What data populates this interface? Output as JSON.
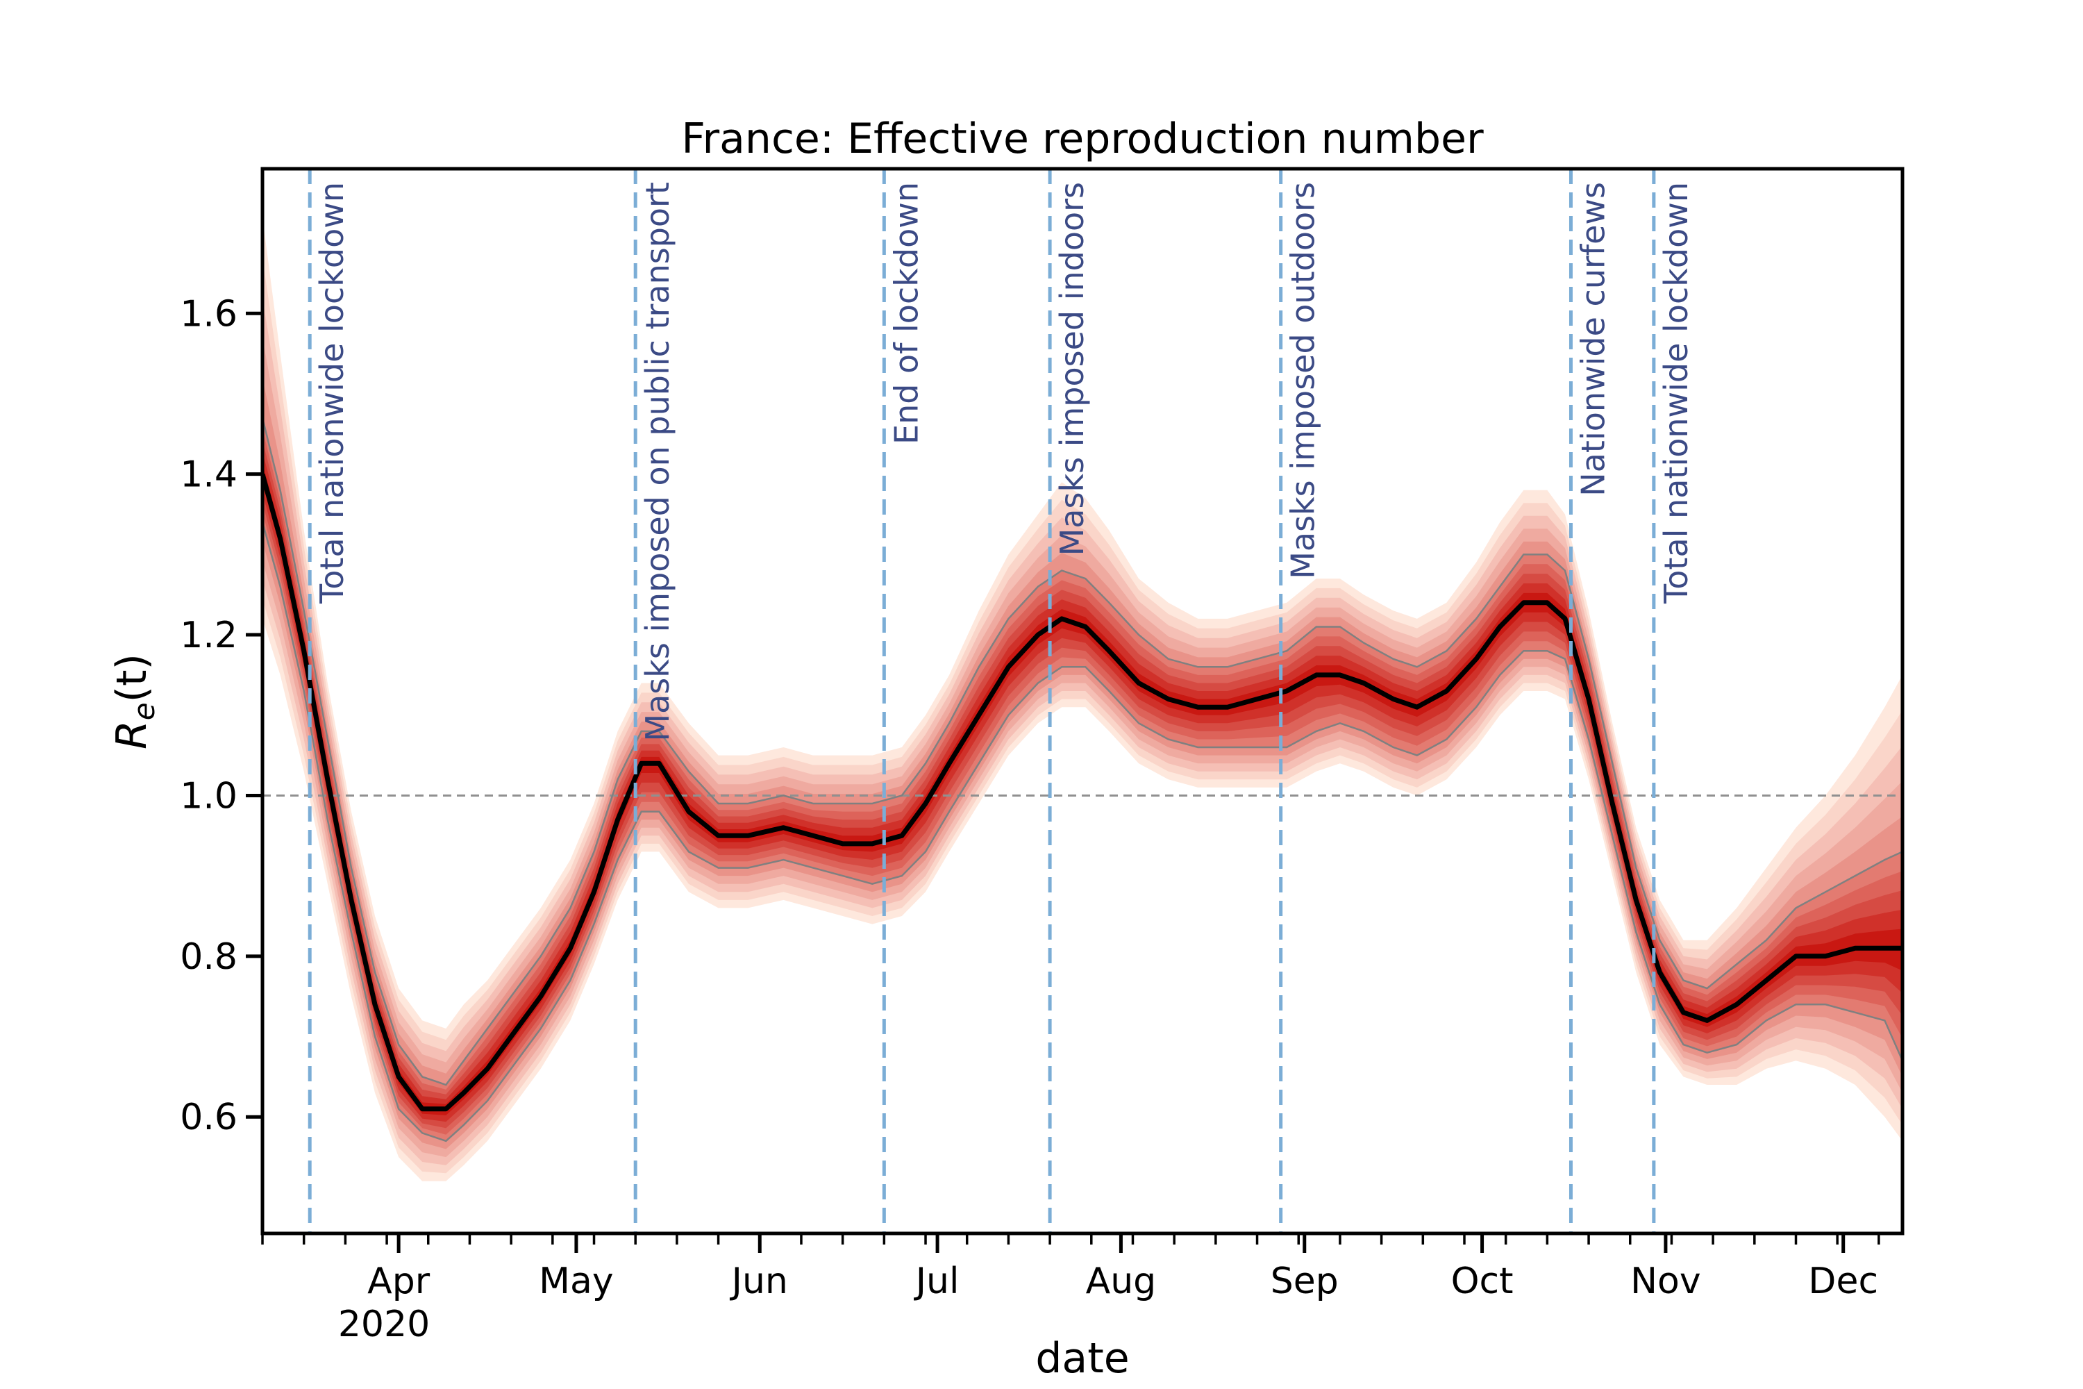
{
  "chart_data": {
    "type": "line",
    "title": "France: Effective reproduction number",
    "xlabel": "date",
    "ylabel": "R_e(t)",
    "ylabel_main": "R",
    "ylabel_sub": "e",
    "ylabel_rest": "(t)",
    "year_label": "2020",
    "xlim": [
      "2020-03-09",
      "2020-12-11"
    ],
    "ylim": [
      0.455,
      1.78
    ],
    "y_ticks": [
      0.6,
      0.8,
      1.0,
      1.2,
      1.4,
      1.6
    ],
    "y_tick_labels": [
      "0.6",
      "0.8",
      "1.0",
      "1.2",
      "1.4",
      "1.6"
    ],
    "month_ticks": [
      {
        "date": "2020-04-01",
        "label": "Apr"
      },
      {
        "date": "2020-05-01",
        "label": "May"
      },
      {
        "date": "2020-06-01",
        "label": "Jun"
      },
      {
        "date": "2020-07-01",
        "label": "Jul"
      },
      {
        "date": "2020-08-01",
        "label": "Aug"
      },
      {
        "date": "2020-09-01",
        "label": "Sep"
      },
      {
        "date": "2020-10-01",
        "label": "Oct"
      },
      {
        "date": "2020-11-01",
        "label": "Nov"
      },
      {
        "date": "2020-12-01",
        "label": "Dec"
      }
    ],
    "reference_line": 1.0,
    "colors": {
      "median": "#000000",
      "band_inner": "#c8160f",
      "band_outer": "#fee5d9",
      "interval_line": "#808080",
      "event_line": "#7badd6",
      "event_text": "#3b4a85",
      "reference": "#909090"
    },
    "series": [
      {
        "x": [
          "2020-03-09",
          "2020-03-12",
          "2020-03-16",
          "2020-03-20",
          "2020-03-24",
          "2020-03-28",
          "2020-04-01",
          "2020-04-05",
          "2020-04-09",
          "2020-04-12",
          "2020-04-16",
          "2020-04-20",
          "2020-04-25",
          "2020-04-30",
          "2020-05-04",
          "2020-05-08",
          "2020-05-12",
          "2020-05-15",
          "2020-05-20",
          "2020-05-25",
          "2020-05-30",
          "2020-06-05",
          "2020-06-10",
          "2020-06-15",
          "2020-06-20",
          "2020-06-25",
          "2020-06-29",
          "2020-07-03",
          "2020-07-08",
          "2020-07-13",
          "2020-07-18",
          "2020-07-22",
          "2020-07-26",
          "2020-07-30",
          "2020-08-04",
          "2020-08-09",
          "2020-08-14",
          "2020-08-19",
          "2020-08-24",
          "2020-08-29",
          "2020-09-03",
          "2020-09-07",
          "2020-09-11",
          "2020-09-16",
          "2020-09-20",
          "2020-09-25",
          "2020-09-30",
          "2020-10-04",
          "2020-10-08",
          "2020-10-12",
          "2020-10-15",
          "2020-10-19",
          "2020-10-23",
          "2020-10-27",
          "2020-10-31",
          "2020-11-04",
          "2020-11-08",
          "2020-11-13",
          "2020-11-18",
          "2020-11-23",
          "2020-11-28",
          "2020-12-03",
          "2020-12-08",
          "2020-12-11"
        ],
        "median": [
          1.4,
          1.32,
          1.18,
          1.02,
          0.87,
          0.74,
          0.65,
          0.61,
          0.61,
          0.63,
          0.66,
          0.7,
          0.75,
          0.81,
          0.88,
          0.97,
          1.04,
          1.04,
          0.98,
          0.95,
          0.95,
          0.96,
          0.95,
          0.94,
          0.94,
          0.95,
          0.99,
          1.04,
          1.1,
          1.16,
          1.2,
          1.22,
          1.21,
          1.18,
          1.14,
          1.12,
          1.11,
          1.11,
          1.12,
          1.13,
          1.15,
          1.15,
          1.14,
          1.12,
          1.11,
          1.13,
          1.17,
          1.21,
          1.24,
          1.24,
          1.22,
          1.12,
          0.99,
          0.87,
          0.78,
          0.73,
          0.72,
          0.74,
          0.77,
          0.8,
          0.8,
          0.81,
          0.81,
          0.81
        ],
        "lower": [
          1.34,
          1.26,
          1.13,
          0.97,
          0.83,
          0.7,
          0.61,
          0.58,
          0.57,
          0.59,
          0.62,
          0.66,
          0.71,
          0.77,
          0.84,
          0.92,
          0.98,
          0.98,
          0.93,
          0.91,
          0.91,
          0.92,
          0.91,
          0.9,
          0.89,
          0.9,
          0.93,
          0.98,
          1.04,
          1.1,
          1.14,
          1.16,
          1.16,
          1.13,
          1.09,
          1.07,
          1.06,
          1.06,
          1.06,
          1.06,
          1.08,
          1.09,
          1.08,
          1.06,
          1.05,
          1.07,
          1.11,
          1.15,
          1.18,
          1.18,
          1.17,
          1.07,
          0.95,
          0.83,
          0.74,
          0.69,
          0.68,
          0.69,
          0.72,
          0.74,
          0.74,
          0.73,
          0.72,
          0.67
        ],
        "upper": [
          1.47,
          1.38,
          1.23,
          1.07,
          0.91,
          0.78,
          0.69,
          0.65,
          0.64,
          0.67,
          0.71,
          0.75,
          0.8,
          0.86,
          0.93,
          1.02,
          1.08,
          1.08,
          1.03,
          0.99,
          0.99,
          1.0,
          0.99,
          0.99,
          0.99,
          1.0,
          1.04,
          1.09,
          1.16,
          1.22,
          1.26,
          1.28,
          1.27,
          1.24,
          1.2,
          1.17,
          1.16,
          1.16,
          1.17,
          1.18,
          1.21,
          1.21,
          1.19,
          1.17,
          1.16,
          1.18,
          1.22,
          1.26,
          1.3,
          1.3,
          1.28,
          1.17,
          1.04,
          0.91,
          0.82,
          0.77,
          0.76,
          0.79,
          0.82,
          0.86,
          0.88,
          0.9,
          0.92,
          0.93
        ],
        "outer_lower": [
          1.22,
          1.15,
          1.03,
          0.89,
          0.75,
          0.63,
          0.55,
          0.52,
          0.52,
          0.54,
          0.57,
          0.61,
          0.66,
          0.72,
          0.79,
          0.87,
          0.93,
          0.93,
          0.88,
          0.86,
          0.86,
          0.87,
          0.86,
          0.85,
          0.84,
          0.85,
          0.88,
          0.93,
          0.99,
          1.05,
          1.09,
          1.11,
          1.11,
          1.08,
          1.04,
          1.02,
          1.01,
          1.01,
          1.01,
          1.01,
          1.03,
          1.04,
          1.03,
          1.01,
          1.0,
          1.02,
          1.06,
          1.1,
          1.13,
          1.13,
          1.12,
          1.02,
          0.9,
          0.78,
          0.69,
          0.65,
          0.64,
          0.64,
          0.66,
          0.67,
          0.66,
          0.64,
          0.6,
          0.57
        ],
        "outer_upper": [
          1.72,
          1.55,
          1.33,
          1.14,
          0.98,
          0.85,
          0.76,
          0.72,
          0.71,
          0.74,
          0.77,
          0.81,
          0.86,
          0.92,
          0.99,
          1.08,
          1.14,
          1.14,
          1.09,
          1.05,
          1.05,
          1.06,
          1.05,
          1.05,
          1.05,
          1.06,
          1.1,
          1.15,
          1.23,
          1.3,
          1.35,
          1.39,
          1.37,
          1.33,
          1.27,
          1.24,
          1.22,
          1.22,
          1.23,
          1.24,
          1.27,
          1.27,
          1.25,
          1.23,
          1.22,
          1.24,
          1.29,
          1.34,
          1.38,
          1.38,
          1.35,
          1.23,
          1.09,
          0.96,
          0.87,
          0.82,
          0.82,
          0.86,
          0.91,
          0.96,
          1.0,
          1.05,
          1.11,
          1.15
        ]
      }
    ],
    "events": [
      {
        "date": "2020-03-17",
        "label": "Total nationwide lockdown"
      },
      {
        "date": "2020-05-11",
        "label": "Masks imposed on public transport"
      },
      {
        "date": "2020-06-22",
        "label": "End of lockdown"
      },
      {
        "date": "2020-07-20",
        "label": "Masks imposed indoors"
      },
      {
        "date": "2020-08-28",
        "label": "Masks imposed outdoors"
      },
      {
        "date": "2020-10-16",
        "label": "Nationwide curfews"
      },
      {
        "date": "2020-10-30",
        "label": "Total nationwide lockdown"
      }
    ]
  }
}
